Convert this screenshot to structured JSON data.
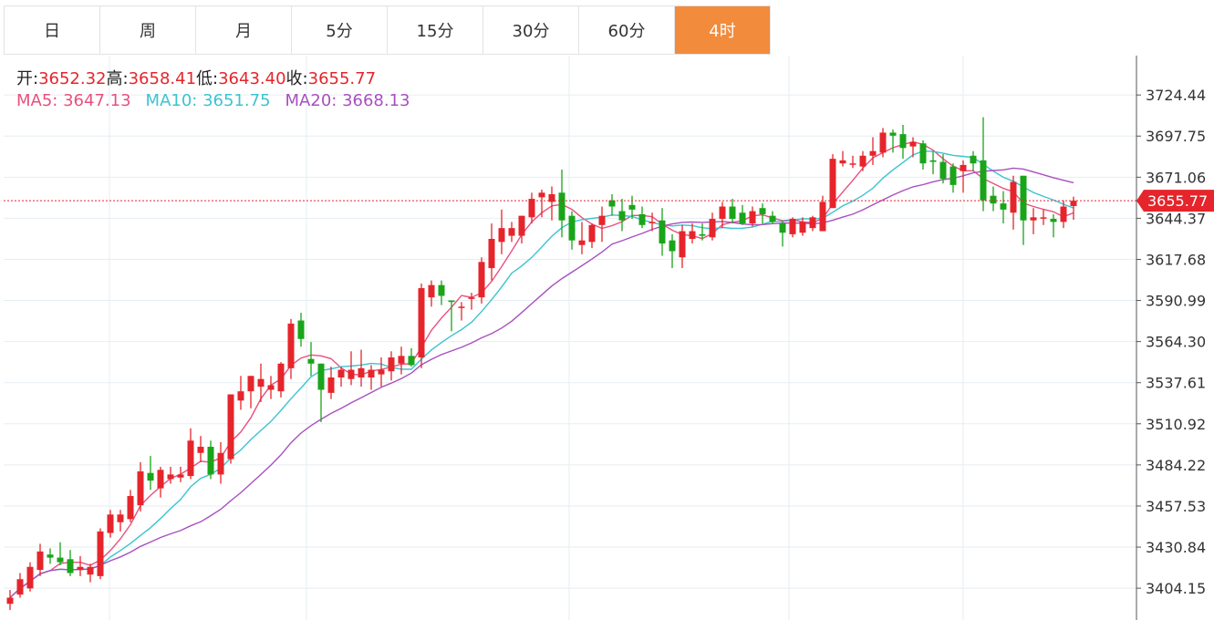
{
  "tabs": [
    "日",
    "周",
    "月",
    "5分",
    "15分",
    "30分",
    "60分",
    "4时"
  ],
  "active_tab": 7,
  "ohlc": {
    "open_label": "开:",
    "open": "3652.32",
    "high_label": "高:",
    "high": "3658.41",
    "low_label": "低:",
    "low": "3643.40",
    "close_label": "收:",
    "close": "3655.77"
  },
  "ma": {
    "ma5_label": "MA5:",
    "ma5": "3647.13",
    "ma10_label": "MA10:",
    "ma10": "3651.75",
    "ma20_label": "MA20:",
    "ma20": "3668.13"
  },
  "current_price": "3655.77",
  "colors": {
    "up": "#e5252b",
    "down": "#1aa41a",
    "ma5": "#e8507e",
    "ma10": "#3cc3d0",
    "ma20": "#a850c0",
    "accent": "#f28b3c",
    "grid": "#e6eef2"
  },
  "chart_data": {
    "type": "candlestick",
    "y_ticks": [
      "3724.44",
      "3697.75",
      "3671.06",
      "3644.37",
      "3617.68",
      "3590.99",
      "3564.30",
      "3537.61",
      "3510.92",
      "3484.22",
      "3457.53",
      "3430.84",
      "3404.15"
    ],
    "ylim": [
      3383.5,
      3750
    ],
    "current": 3655.77,
    "candles": [
      [
        3394,
        3403,
        3390,
        3398
      ],
      [
        3400,
        3414,
        3398,
        3410
      ],
      [
        3404,
        3421,
        3402,
        3418
      ],
      [
        3416,
        3433,
        3412,
        3428
      ],
      [
        3426,
        3430,
        3420,
        3424
      ],
      [
        3424,
        3434,
        3419,
        3421
      ],
      [
        3423,
        3429,
        3412,
        3414
      ],
      [
        3416,
        3425,
        3412,
        3418
      ],
      [
        3413,
        3420,
        3408,
        3418
      ],
      [
        3412,
        3443,
        3410,
        3441
      ],
      [
        3440,
        3455,
        3437,
        3452
      ],
      [
        3447,
        3455,
        3441,
        3452
      ],
      [
        3449,
        3468,
        3447,
        3464
      ],
      [
        3458,
        3486,
        3454,
        3480
      ],
      [
        3479,
        3490,
        3468,
        3474
      ],
      [
        3469,
        3483,
        3463,
        3481
      ],
      [
        3475,
        3483,
        3472,
        3478
      ],
      [
        3476,
        3483,
        3473,
        3478
      ],
      [
        3477,
        3508,
        3475,
        3500
      ],
      [
        3492,
        3503,
        3486,
        3496
      ],
      [
        3496,
        3500,
        3475,
        3478
      ],
      [
        3478,
        3499,
        3472,
        3492
      ],
      [
        3488,
        3530,
        3485,
        3530
      ],
      [
        3526,
        3542,
        3520,
        3532
      ],
      [
        3532,
        3542,
        3521,
        3542
      ],
      [
        3535,
        3550,
        3525,
        3540
      ],
      [
        3533,
        3542,
        3527,
        3536
      ],
      [
        3532,
        3551,
        3528,
        3550
      ],
      [
        3547,
        3579,
        3540,
        3576
      ],
      [
        3578,
        3583,
        3561,
        3566
      ],
      [
        3553,
        3564,
        3542,
        3550
      ],
      [
        3550,
        3550,
        3512,
        3533
      ],
      [
        3531,
        3548,
        3527,
        3541
      ],
      [
        3541,
        3548,
        3535,
        3546
      ],
      [
        3540,
        3558,
        3536,
        3546
      ],
      [
        3541,
        3559,
        3535,
        3547
      ],
      [
        3541,
        3549,
        3533,
        3546
      ],
      [
        3543,
        3554,
        3535,
        3546
      ],
      [
        3545,
        3558,
        3539,
        3554
      ],
      [
        3550,
        3561,
        3543,
        3555
      ],
      [
        3555,
        3560,
        3548,
        3549
      ],
      [
        3554,
        3602,
        3547,
        3599
      ],
      [
        3593,
        3604,
        3587,
        3601
      ],
      [
        3601,
        3604,
        3588,
        3594
      ],
      [
        3591,
        3591,
        3571,
        3590
      ],
      [
        3587,
        3590,
        3578,
        3587
      ],
      [
        3592,
        3596,
        3585,
        3593
      ],
      [
        3593,
        3619,
        3589,
        3616
      ],
      [
        3612,
        3641,
        3604,
        3631
      ],
      [
        3629,
        3650,
        3621,
        3638
      ],
      [
        3633,
        3642,
        3629,
        3638
      ],
      [
        3633,
        3646,
        3628,
        3646
      ],
      [
        3645,
        3661,
        3641,
        3657
      ],
      [
        3658,
        3663,
        3645,
        3661
      ],
      [
        3655,
        3665,
        3643,
        3660
      ],
      [
        3661,
        3676,
        3632,
        3643
      ],
      [
        3646,
        3649,
        3624,
        3630
      ],
      [
        3627,
        3642,
        3621,
        3630
      ],
      [
        3629,
        3641,
        3625,
        3640
      ],
      [
        3640,
        3652,
        3629,
        3646
      ],
      [
        3656,
        3660,
        3646,
        3652
      ],
      [
        3649,
        3657,
        3636,
        3643
      ],
      [
        3653,
        3659,
        3644,
        3650
      ],
      [
        3647,
        3652,
        3638,
        3640
      ],
      [
        3642,
        3648,
        3636,
        3642
      ],
      [
        3643,
        3651,
        3620,
        3628
      ],
      [
        3630,
        3634,
        3612,
        3623
      ],
      [
        3619,
        3640,
        3612,
        3636
      ],
      [
        3631,
        3641,
        3628,
        3636
      ],
      [
        3634,
        3641,
        3630,
        3633
      ],
      [
        3632,
        3648,
        3630,
        3644
      ],
      [
        3644,
        3655,
        3638,
        3652
      ],
      [
        3652,
        3657,
        3641,
        3644
      ],
      [
        3648,
        3653,
        3640,
        3641
      ],
      [
        3641,
        3652,
        3639,
        3649
      ],
      [
        3651,
        3654,
        3641,
        3647
      ],
      [
        3646,
        3649,
        3641,
        3642
      ],
      [
        3641,
        3643,
        3626,
        3635
      ],
      [
        3634,
        3645,
        3632,
        3644
      ],
      [
        3635,
        3645,
        3633,
        3642
      ],
      [
        3638,
        3646,
        3636,
        3645
      ],
      [
        3636,
        3659,
        3636,
        3655
      ],
      [
        3651,
        3686,
        3651,
        3683
      ],
      [
        3680,
        3688,
        3678,
        3682
      ],
      [
        3680,
        3685,
        3677,
        3680
      ],
      [
        3678,
        3688,
        3675,
        3685
      ],
      [
        3685,
        3697,
        3679,
        3688
      ],
      [
        3687,
        3703,
        3684,
        3700
      ],
      [
        3700,
        3702,
        3687,
        3698
      ],
      [
        3699,
        3705,
        3683,
        3690
      ],
      [
        3691,
        3697,
        3684,
        3694
      ],
      [
        3693,
        3695,
        3676,
        3680
      ],
      [
        3682,
        3688,
        3673,
        3681
      ],
      [
        3681,
        3686,
        3667,
        3670
      ],
      [
        3678,
        3680,
        3661,
        3666
      ],
      [
        3675,
        3682,
        3661,
        3679
      ],
      [
        3685,
        3688,
        3675,
        3680
      ],
      [
        3682,
        3710,
        3649,
        3656
      ],
      [
        3659,
        3665,
        3649,
        3654
      ],
      [
        3654,
        3662,
        3641,
        3650
      ],
      [
        3648,
        3672,
        3637,
        3668
      ],
      [
        3672,
        3672,
        3627,
        3643
      ],
      [
        3643,
        3651,
        3634,
        3645
      ],
      [
        3645,
        3650,
        3640,
        3645
      ],
      [
        3644,
        3647,
        3632,
        3642
      ],
      [
        3642,
        3656,
        3638,
        3652
      ],
      [
        3652.32,
        3658.41,
        3643.4,
        3655.77
      ]
    ]
  }
}
